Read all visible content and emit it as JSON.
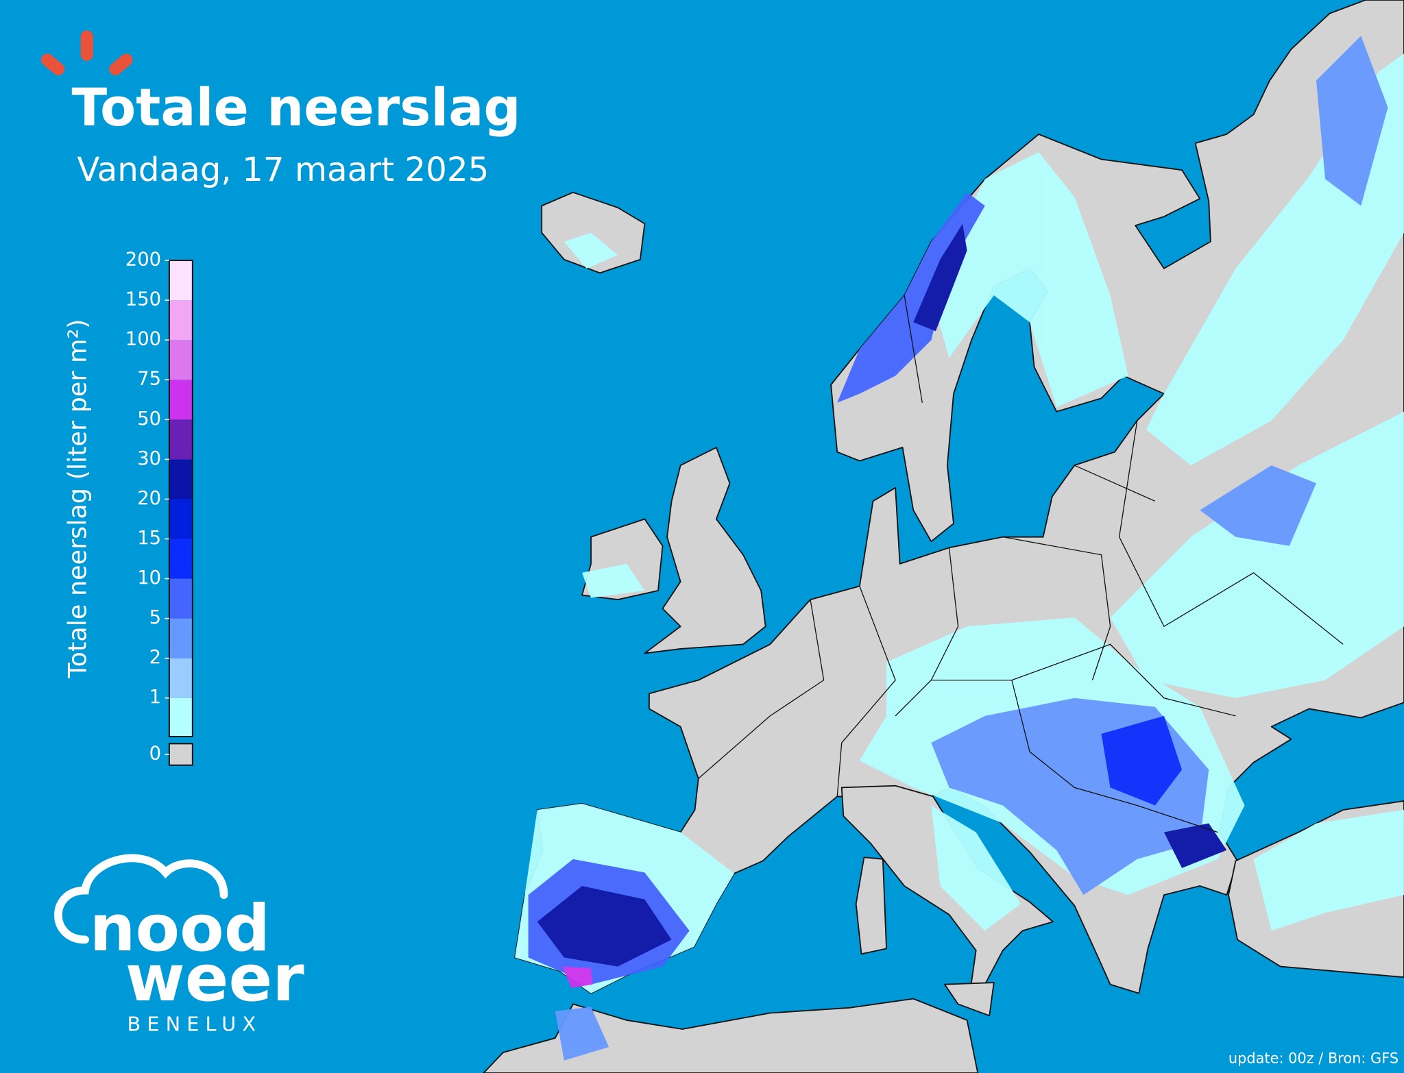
{
  "header": {
    "title": "Totale neerslag",
    "subtitle": "Vandaag, 17 maart 2025"
  },
  "legend": {
    "label": "Totale neerslag (liter per m²)",
    "ticks": [
      1,
      2,
      5,
      10,
      15,
      20,
      30,
      50,
      75,
      100,
      150,
      200
    ],
    "colors": [
      "#b4ffff",
      "#99ccff",
      "#6699ff",
      "#4466ff",
      "#0a2cff",
      "#0020dd",
      "#0a14a8",
      "#6a20b4",
      "#cc33ee",
      "#dd77ee",
      "#f3a6f3",
      "#ffe2ff"
    ],
    "zero": 0,
    "zero_color": "#d3d3d3"
  },
  "logo": {
    "line1": "nood",
    "line2": "weer",
    "tagline": "BENELUX"
  },
  "footer": "update: 00z / Bron: GFS"
}
